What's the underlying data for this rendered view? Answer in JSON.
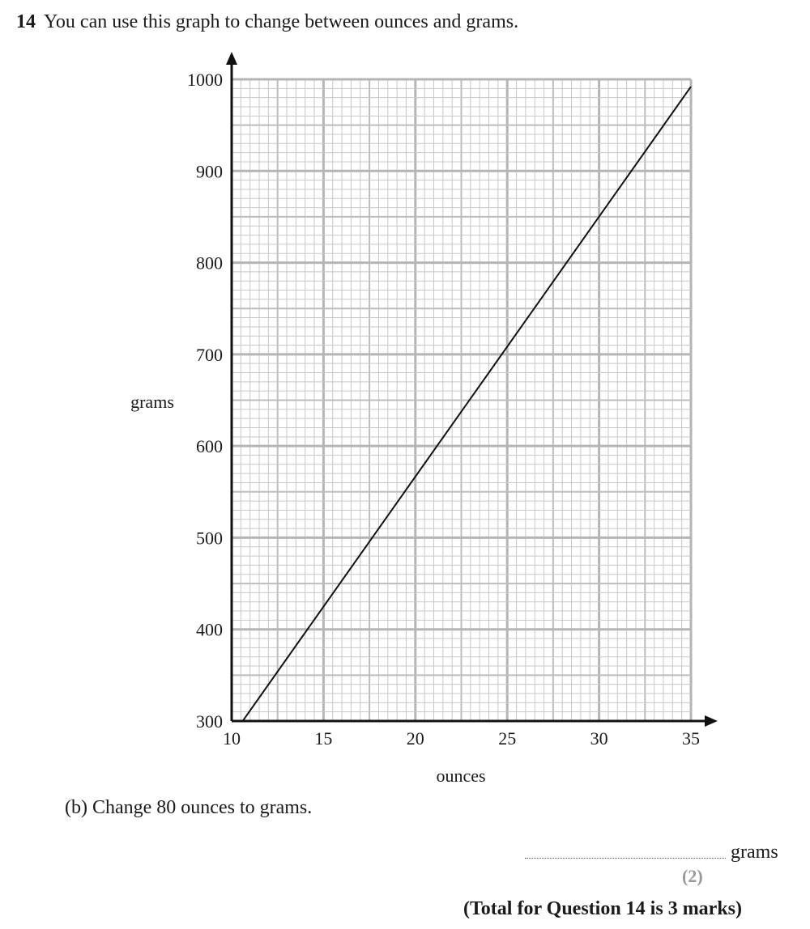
{
  "question": {
    "number": "14",
    "text": "You can use this graph to change between ounces and grams."
  },
  "chart_data": {
    "type": "line",
    "xlabel": "ounces",
    "ylabel": "grams",
    "xlim": [
      10,
      35
    ],
    "ylim": [
      300,
      1000
    ],
    "x_ticks": [
      10,
      15,
      20,
      25,
      30,
      35
    ],
    "y_ticks": [
      300,
      400,
      500,
      600,
      700,
      800,
      900,
      1000
    ],
    "grid": true,
    "series": [
      {
        "x": [
          10.6,
          35
        ],
        "y": [
          300,
          992
        ]
      }
    ]
  },
  "part_b": {
    "text": "(b) Change 80 ounces to grams."
  },
  "answer": {
    "unit": "grams",
    "marks": "(2)"
  },
  "total": "(Total for Question 14 is 3 marks)"
}
